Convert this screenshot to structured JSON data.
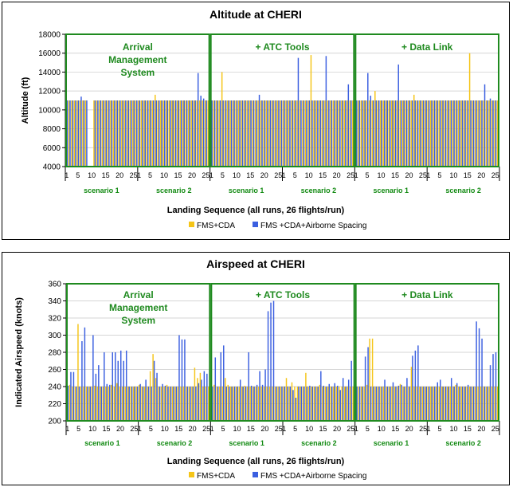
{
  "chart_data": [
    {
      "type": "bar",
      "title": "Altitude at CHERI",
      "xlabel": "Landing Sequence (all runs, 26 flights/run)",
      "ylabel": "Altitude (ft)",
      "ylim": [
        4000,
        18000
      ],
      "yticks": [
        4000,
        6000,
        8000,
        10000,
        12000,
        14000,
        16000,
        18000
      ],
      "xticks": [
        "1",
        "5",
        "10",
        "15",
        "20",
        "25"
      ],
      "phases": [
        {
          "label_lines": [
            "Arrival",
            "Management",
            "System"
          ],
          "scenarios": [
            "scenario 1",
            "scenario 2"
          ]
        },
        {
          "label_lines": [
            "+ ATC Tools"
          ],
          "scenarios": [
            "scenario 1",
            "scenario 2"
          ]
        },
        {
          "label_lines": [
            "+ Data Link"
          ],
          "scenarios": [
            "scenario 1",
            "scenario 2"
          ]
        }
      ],
      "legend": {
        "placement": "bottom-center"
      },
      "series": [
        {
          "name": "FMS+CDA",
          "color": "#f5c518",
          "values": [
            [
              11000,
              11000,
              11000,
              11000,
              11000,
              11000,
              11000,
              11000,
              null,
              null,
              11000,
              11000,
              11000,
              11000,
              11000,
              11000,
              11000,
              11000,
              11000,
              11000,
              11000,
              11000,
              11000,
              11000,
              11000,
              11000
            ],
            [
              11000,
              11000,
              11000,
              11000,
              11000,
              11000,
              11600,
              11000,
              11000,
              11000,
              11000,
              11000,
              11000,
              11000,
              11000,
              11000,
              11000,
              11000,
              11000,
              11000,
              11000,
              11000,
              11000,
              11000,
              11000,
              11000
            ],
            [
              11000,
              11000,
              11000,
              11000,
              14000,
              11000,
              11000,
              11000,
              11000,
              11000,
              11000,
              11000,
              11000,
              11000,
              11000,
              11000,
              11000,
              11000,
              11000,
              11000,
              11000,
              11000,
              11000,
              11000,
              11000,
              11000
            ],
            [
              11000,
              11000,
              11000,
              11000,
              11000,
              11000,
              11000,
              11000,
              11000,
              11000,
              15800,
              11000,
              11000,
              11000,
              11000,
              11000,
              11000,
              11000,
              11000,
              11000,
              11000,
              11000,
              11000,
              11000,
              11000,
              11000
            ],
            [
              11000,
              11000,
              11000,
              11000,
              11000,
              11000,
              11000,
              12000,
              11000,
              11000,
              11000,
              11000,
              11000,
              11000,
              11000,
              11000,
              11000,
              11000,
              11000,
              11000,
              11000,
              11600,
              11000,
              11000,
              11000,
              11000
            ],
            [
              11000,
              11000,
              11000,
              11000,
              11000,
              11000,
              11000,
              11000,
              11000,
              11000,
              11000,
              11000,
              11000,
              11000,
              11000,
              16000,
              11000,
              11000,
              11000,
              11000,
              11000,
              11000,
              11000,
              11000,
              11000,
              11000
            ]
          ]
        },
        {
          "name": "FMS +CDA+Airborne Spacing",
          "color": "#3b5fe0",
          "values": [
            [
              11000,
              11000,
              11000,
              11000,
              11000,
              11400,
              11000,
              11000,
              null,
              null,
              11000,
              11000,
              11000,
              11000,
              11000,
              11000,
              11000,
              11000,
              11000,
              11000,
              11000,
              11000,
              11000,
              11000,
              11000,
              11000
            ],
            [
              11000,
              11000,
              11000,
              11000,
              11000,
              11000,
              11000,
              11000,
              11000,
              11000,
              11000,
              11000,
              11000,
              11000,
              11000,
              11000,
              11000,
              11000,
              11000,
              11000,
              11000,
              13900,
              11500,
              11200,
              11000,
              11000
            ],
            [
              11000,
              11000,
              11000,
              11000,
              11000,
              11000,
              11000,
              11000,
              11000,
              11000,
              11000,
              11000,
              11000,
              11000,
              11000,
              11000,
              11000,
              11600,
              11000,
              11000,
              11000,
              11000,
              11000,
              11000,
              11000,
              11000
            ],
            [
              11000,
              11000,
              11000,
              11000,
              11000,
              15500,
              11000,
              11000,
              11000,
              11000,
              11000,
              11000,
              11000,
              11000,
              11000,
              15700,
              11000,
              11000,
              11000,
              11000,
              11000,
              11000,
              11000,
              12700,
              11000,
              11000
            ],
            [
              11000,
              11000,
              11000,
              11000,
              13900,
              11500,
              11000,
              11000,
              11000,
              11000,
              11000,
              11000,
              11000,
              11000,
              11000,
              14800,
              11000,
              11000,
              11000,
              11000,
              11000,
              11000,
              11000,
              11000,
              11000,
              11000
            ],
            [
              11000,
              11000,
              11000,
              11000,
              11000,
              11000,
              11000,
              11000,
              11000,
              11000,
              11000,
              11000,
              11000,
              11000,
              11000,
              11000,
              11000,
              11000,
              11000,
              11000,
              12700,
              11000,
              11200,
              11000,
              11000,
              11000
            ]
          ]
        }
      ]
    },
    {
      "type": "bar",
      "title": "Airspeed at CHERI",
      "xlabel": "Landing Sequence (all runs, 26 flights/run)",
      "ylabel": "Indicated Airspeed (knots)",
      "ylim": [
        200,
        360
      ],
      "yticks": [
        200,
        220,
        240,
        260,
        280,
        300,
        320,
        340,
        360
      ],
      "xticks": [
        "1",
        "5",
        "10",
        "15",
        "20",
        "25"
      ],
      "phases": [
        {
          "label_lines": [
            "Arrival",
            "Management",
            "System"
          ],
          "scenarios": [
            "scenario 1",
            "scenario 2"
          ]
        },
        {
          "label_lines": [
            "+ ATC Tools"
          ],
          "scenarios": [
            "scenario 1",
            "scenario 2"
          ]
        },
        {
          "label_lines": [
            "+ Data Link"
          ],
          "scenarios": [
            "scenario 1",
            "scenario 2"
          ]
        }
      ],
      "legend": {
        "placement": "bottom-center"
      },
      "series": [
        {
          "name": "FMS+CDA",
          "color": "#f5c518",
          "values": [
            [
              240,
              242,
              240,
              240,
              313,
              240,
              240,
              240,
              240,
              240,
              241,
              240,
              240,
              240,
              240,
              240,
              242,
              240,
              244,
              240,
              240,
              240,
              240,
              240,
              240,
              240
            ],
            [
              242,
              240,
              240,
              240,
              258,
              278,
              250,
              240,
              240,
              240,
              242,
              240,
              240,
              240,
              240,
              240,
              240,
              240,
              240,
              240,
              262,
              250,
              256,
              240,
              240,
              240
            ],
            [
              240,
              242,
              240,
              240,
              240,
              250,
              242,
              240,
              240,
              240,
              240,
              240,
              241,
              240,
              240,
              240,
              240,
              240,
              240,
              240,
              240,
              240,
              240,
              240,
              240,
              240
            ],
            [
              240,
              250,
              240,
              245,
              240,
              240,
              240,
              240,
              256,
              240,
              240,
              240,
              240,
              242,
              240,
              240,
              240,
              240,
              240,
              240,
              240,
              240,
              240,
              240,
              240,
              240
            ],
            [
              240,
              240,
              240,
              240,
              242,
              296,
              296,
              240,
              240,
              240,
              240,
              240,
              240,
              240,
              240,
              240,
              243,
              240,
              240,
              240,
              263,
              240,
              240,
              240,
              240,
              240
            ],
            [
              240,
              240,
              240,
              240,
              240,
              240,
              240,
              240,
              240,
              240,
              242,
              240,
              240,
              240,
              240,
              240,
              240,
              240,
              240,
              240,
              240,
              240,
              240,
              240,
              240,
              240
            ]
          ]
        },
        {
          "name": "FMS +CDA+Airborne Spacing",
          "color": "#3b5fe0",
          "values": [
            [
              241,
              257,
              257,
              240,
              240,
              293,
              309,
              240,
              240,
              300,
              255,
              265,
              240,
              280,
              243,
              242,
              280,
              280,
              270,
              282,
              270,
              282,
              240,
              240,
              240,
              240
            ],
            [
              243,
              240,
              248,
              240,
              240,
              270,
              256,
              240,
              243,
              241,
              240,
              240,
              240,
              240,
              300,
              295,
              295,
              240,
              240,
              240,
              240,
              244,
              248,
              258,
              255,
              240
            ],
            [
              240,
              274,
              240,
              280,
              288,
              240,
              240,
              240,
              240,
              240,
              248,
              240,
              240,
              280,
              241,
              240,
              242,
              258,
              242,
              260,
              328,
              338,
              340,
              240,
              240,
              240
            ],
            [
              240,
              240,
              240,
              236,
              227,
              240,
              240,
              240,
              240,
              241,
              240,
              240,
              240,
              258,
              241,
              240,
              243,
              240,
              244,
              241,
              236,
              250,
              240,
              248,
              270,
              240
            ],
            [
              240,
              240,
              240,
              275,
              286,
              240,
              240,
              240,
              240,
              240,
              248,
              240,
              240,
              245,
              240,
              241,
              242,
              240,
              250,
              240,
              276,
              282,
              288,
              240,
              240,
              240
            ],
            [
              240,
              240,
              240,
              245,
              248,
              240,
              240,
              240,
              250,
              240,
              244,
              240,
              240,
              240,
              242,
              240,
              240,
              316,
              308,
              296,
              240,
              240,
              265,
              278,
              280,
              280
            ]
          ]
        }
      ]
    }
  ]
}
